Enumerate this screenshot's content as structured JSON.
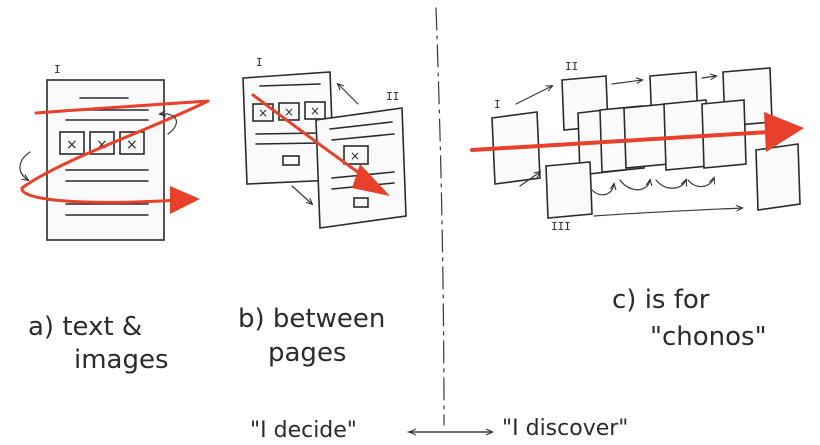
{
  "colors": {
    "accent": "#e8402a",
    "ink": "#2b2b2b",
    "paper": "#fafafa"
  },
  "panels": {
    "a": {
      "label_line1": "a) text &",
      "label_line2": "images",
      "roman": "I"
    },
    "b": {
      "label_line1": "b) between",
      "label_line2": "pages",
      "roman_left": "I",
      "roman_right": "II"
    },
    "c": {
      "label_line1": "c) is for",
      "label_line2": "\"chonos\"",
      "roman_1": "I",
      "roman_2": "II",
      "roman_3": "III"
    }
  },
  "bottom": {
    "left_caption": "\"I decide\"",
    "right_caption": "\"I discover\""
  },
  "placeholder_glyph": "×"
}
